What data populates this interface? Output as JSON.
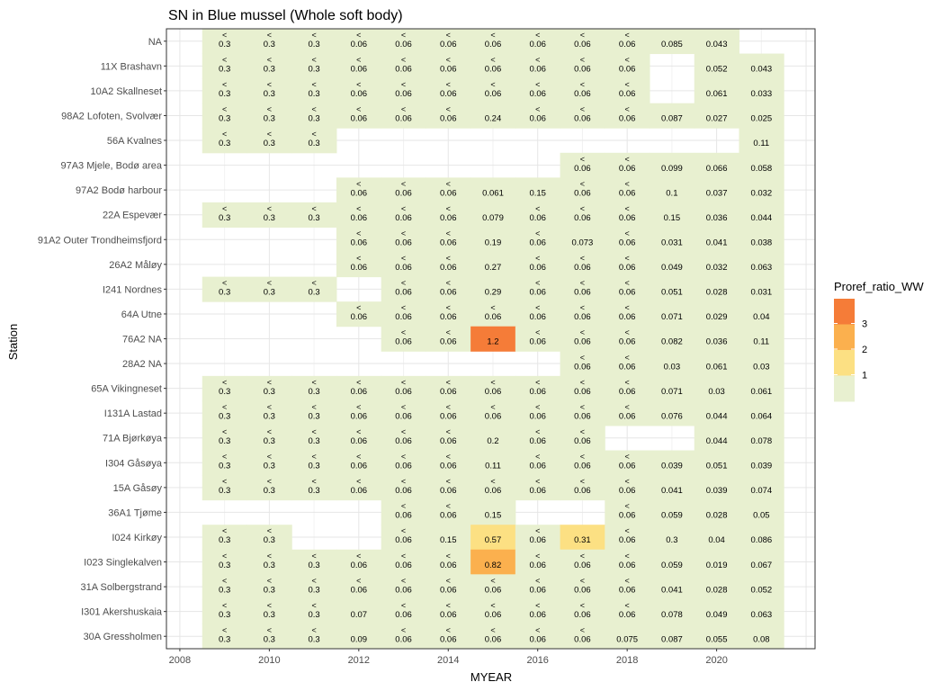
{
  "chart_data": {
    "type": "heatmap",
    "title": "SN in Blue mussel (Whole soft body)",
    "xlabel": "MYEAR",
    "ylabel": "Station",
    "xlim": [
      2007.7,
      2022.2
    ],
    "x_ticks": [
      2008,
      2010,
      2012,
      2014,
      2016,
      2018,
      2020
    ],
    "x_tick_labels": [
      "2008",
      "2010",
      "2012",
      "2014",
      "2016",
      "2018",
      "2020"
    ],
    "years": [
      2009,
      2010,
      2011,
      2012,
      2013,
      2014,
      2015,
      2016,
      2017,
      2018,
      2019,
      2020,
      2021
    ],
    "stations": [
      "NA",
      "11X Brashavn",
      "10A2 Skallneset",
      "98A2 Lofoten, Svolvær",
      "56A Kvalnes",
      "97A3 Mjele, Bodø area",
      "97A2 Bodø harbour",
      "22A Espevær",
      "91A2 Outer Trondheimsfjord",
      "26A2 Måløy",
      "I241 Nordnes",
      "64A Utne",
      "76A2 NA",
      "28A2 NA",
      "65A Vikingneset",
      "I131A Lastad",
      "71A Bjørkøya",
      "I304 Gåsøya",
      "15A Gåsøy",
      "36A1 Tjøme",
      "I024 Kirkøy",
      "I023 Singlekalven",
      "31A Solbergstrand",
      "I301 Akershuskaia",
      "30A Gressholmen"
    ],
    "cells": [
      [
        "<0.3",
        "<0.3",
        "<0.3",
        "<0.06",
        "<0.06",
        "<0.06",
        "<0.06",
        "<0.06",
        "<0.06",
        "<0.06",
        "0.085",
        "0.043",
        ""
      ],
      [
        "<0.3",
        "<0.3",
        "<0.3",
        "<0.06",
        "<0.06",
        "<0.06",
        "<0.06",
        "<0.06",
        "<0.06",
        "<0.06",
        "",
        "0.052",
        "0.043"
      ],
      [
        "<0.3",
        "<0.3",
        "<0.3",
        "<0.06",
        "<0.06",
        "<0.06",
        "<0.06",
        "<0.06",
        "<0.06",
        "<0.06",
        "",
        "0.061",
        "0.033"
      ],
      [
        "<0.3",
        "<0.3",
        "<0.3",
        "<0.06",
        "<0.06",
        "<0.06",
        "0.24",
        "<0.06",
        "<0.06",
        "<0.06",
        "0.087",
        "0.027",
        "0.025"
      ],
      [
        "<0.3",
        "<0.3",
        "<0.3",
        "",
        "",
        "",
        "",
        "",
        "",
        "",
        "",
        "",
        "0.11"
      ],
      [
        "",
        "",
        "",
        "",
        "",
        "",
        "",
        "",
        "<0.06",
        "<0.06",
        "0.099",
        "0.066",
        "0.058"
      ],
      [
        "",
        "",
        "",
        "<0.06",
        "<0.06",
        "<0.06",
        "0.061",
        "0.15",
        "<0.06",
        "<0.06",
        "0.1",
        "0.037",
        "0.032"
      ],
      [
        "<0.3",
        "<0.3",
        "<0.3",
        "<0.06",
        "<0.06",
        "<0.06",
        "0.079",
        "<0.06",
        "<0.06",
        "<0.06",
        "0.15",
        "0.036",
        "0.044"
      ],
      [
        "",
        "",
        "",
        "<0.06",
        "<0.06",
        "<0.06",
        "0.19",
        "<0.06",
        "0.073",
        "<0.06",
        "0.031",
        "0.041",
        "0.038"
      ],
      [
        "",
        "",
        "",
        "<0.06",
        "<0.06",
        "<0.06",
        "0.27",
        "<0.06",
        "<0.06",
        "<0.06",
        "0.049",
        "0.032",
        "0.063"
      ],
      [
        "<0.3",
        "<0.3",
        "<0.3",
        "",
        "<0.06",
        "<0.06",
        "0.29",
        "<0.06",
        "<0.06",
        "<0.06",
        "0.051",
        "0.028",
        "0.031"
      ],
      [
        "",
        "",
        "",
        "<0.06",
        "<0.06",
        "<0.06",
        "<0.06",
        "<0.06",
        "<0.06",
        "<0.06",
        "0.071",
        "0.029",
        "0.04"
      ],
      [
        "",
        "",
        "",
        "",
        "<0.06",
        "<0.06",
        "1.2",
        "<0.06",
        "<0.06",
        "<0.06",
        "0.082",
        "0.036",
        "0.11"
      ],
      [
        "",
        "",
        "",
        "",
        "",
        "",
        "",
        "",
        "<0.06",
        "<0.06",
        "0.03",
        "0.061",
        "0.03"
      ],
      [
        "<0.3",
        "<0.3",
        "<0.3",
        "<0.06",
        "<0.06",
        "<0.06",
        "<0.06",
        "<0.06",
        "<0.06",
        "<0.06",
        "0.071",
        "0.03",
        "0.061"
      ],
      [
        "<0.3",
        "<0.3",
        "<0.3",
        "<0.06",
        "<0.06",
        "<0.06",
        "<0.06",
        "<0.06",
        "<0.06",
        "<0.06",
        "0.076",
        "0.044",
        "0.064"
      ],
      [
        "<0.3",
        "<0.3",
        "<0.3",
        "<0.06",
        "<0.06",
        "<0.06",
        "0.2",
        "<0.06",
        "<0.06",
        "",
        "",
        "0.044",
        "0.078"
      ],
      [
        "<0.3",
        "<0.3",
        "<0.3",
        "<0.06",
        "<0.06",
        "<0.06",
        "0.11",
        "<0.06",
        "<0.06",
        "<0.06",
        "0.039",
        "0.051",
        "0.039"
      ],
      [
        "<0.3",
        "<0.3",
        "<0.3",
        "<0.06",
        "<0.06",
        "<0.06",
        "<0.06",
        "<0.06",
        "<0.06",
        "<0.06",
        "0.041",
        "0.039",
        "0.074"
      ],
      [
        "",
        "",
        "",
        "",
        "<0.06",
        "<0.06",
        "0.15",
        "",
        "",
        "<0.06",
        "0.059",
        "0.028",
        "0.05"
      ],
      [
        "<0.3",
        "<0.3",
        "",
        "",
        "<0.06",
        "0.15",
        "0.57",
        "<0.06",
        "0.31",
        "<0.06",
        "0.3",
        "0.04",
        "0.086"
      ],
      [
        "<0.3",
        "<0.3",
        "<0.3",
        "<0.06",
        "<0.06",
        "<0.06",
        "0.82",
        "<0.06",
        "<0.06",
        "<0.06",
        "0.059",
        "0.019",
        "0.067"
      ],
      [
        "<0.3",
        "<0.3",
        "<0.3",
        "<0.06",
        "<0.06",
        "<0.06",
        "<0.06",
        "<0.06",
        "<0.06",
        "<0.06",
        "0.041",
        "0.028",
        "0.052"
      ],
      [
        "<0.3",
        "<0.3",
        "<0.3",
        "0.07",
        "<0.06",
        "<0.06",
        "<0.06",
        "<0.06",
        "<0.06",
        "<0.06",
        "0.078",
        "0.049",
        "0.063"
      ],
      [
        "<0.3",
        "<0.3",
        "<0.3",
        "0.09",
        "<0.06",
        "<0.06",
        "<0.06",
        "<0.06",
        "<0.06",
        "0.075",
        "0.087",
        "0.055",
        "0.08"
      ]
    ],
    "highlight_fills": [
      {
        "station": "76A2 NA",
        "year": 2015,
        "color": "#f57c38"
      },
      {
        "station": "I023 Singlekalven",
        "year": 2015,
        "color": "#fbb04e"
      },
      {
        "station": "I024 Kirkøy",
        "year": 2015,
        "color": "#fce083"
      },
      {
        "station": "I024 Kirkøy",
        "year": 2017,
        "color": "#fce083"
      }
    ],
    "default_fill": "#e8f0d0",
    "legend": {
      "title": "Proref_ratio_WW",
      "position": "right",
      "entries": [
        {
          "label": "3",
          "color": "#f57c38"
        },
        {
          "label": "2",
          "color": "#fbb04e"
        },
        {
          "label": "1",
          "color": "#fce083"
        },
        {
          "label": "",
          "color": "#e8f0d0"
        }
      ],
      "tick_labels": [
        "3",
        "2",
        "1"
      ]
    },
    "grid": true
  }
}
